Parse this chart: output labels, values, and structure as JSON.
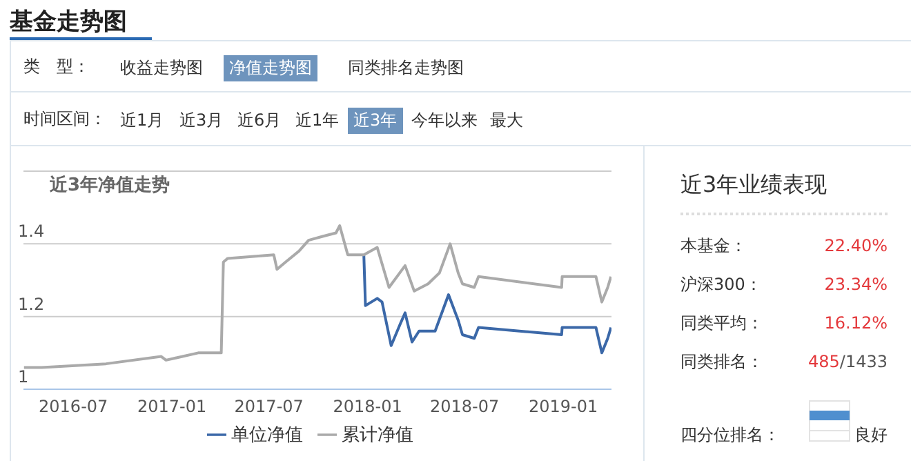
{
  "chart_data": [
    {
      "type": "line",
      "title": "近3年净值走势",
      "annotations": [
        "基金走势图",
        "类　型：",
        "收益走势图",
        "净值走势图",
        "同类排名走势图",
        "时间区间：",
        "近1月",
        "近3月",
        "近6月",
        "近1年",
        "近3年",
        "今年以来",
        "最大"
      ],
      "series": [
        {
          "name": "单位净值",
          "color": "#3b68a8",
          "x": [
            "2017-12-25",
            "2017-12-28",
            "2018-01-19",
            "2018-01-28",
            "2018-02-14",
            "2018-03-03",
            "2018-03-12",
            "2018-03-25",
            "2018-04-07",
            "2018-05-07",
            "2018-06-01",
            "2018-06-19",
            "2018-06-27",
            "2018-07-19",
            "2018-07-27",
            "2018-12-29",
            "2018-12-30",
            "2019-03-03",
            "2019-03-14",
            "2019-03-25",
            "2019-03-31"
          ],
          "values": [
            1.37,
            1.23,
            1.25,
            1.24,
            1.12,
            1.18,
            1.21,
            1.13,
            1.16,
            1.16,
            1.26,
            1.19,
            1.15,
            1.14,
            1.17,
            1.15,
            1.17,
            1.17,
            1.1,
            1.14,
            1.17
          ]
        },
        {
          "name": "累计净值",
          "color": "#aaaaaa",
          "x": [
            "2016-03-31",
            "2016-05-03",
            "2016-08-31",
            "2016-12-12",
            "2016-12-21",
            "2017-02-19",
            "2017-04-03",
            "2017-04-07",
            "2017-04-15",
            "2017-07-10",
            "2017-07-16",
            "2017-08-01",
            "2017-08-26",
            "2017-09-13",
            "2017-10-08",
            "2017-11-03",
            "2017-11-10",
            "2017-11-25",
            "2017-12-25",
            "2018-01-19",
            "2018-02-10",
            "2018-03-12",
            "2018-03-29",
            "2018-04-24",
            "2018-05-15",
            "2018-06-04",
            "2018-06-19",
            "2018-06-27",
            "2018-07-19",
            "2018-07-27",
            "2018-12-29",
            "2018-12-30",
            "2019-03-03",
            "2019-03-14",
            "2019-03-25",
            "2019-03-31"
          ],
          "values": [
            1.06,
            1.06,
            1.07,
            1.09,
            1.08,
            1.1,
            1.1,
            1.35,
            1.36,
            1.37,
            1.33,
            1.35,
            1.38,
            1.41,
            1.42,
            1.43,
            1.45,
            1.37,
            1.37,
            1.39,
            1.28,
            1.34,
            1.27,
            1.29,
            1.32,
            1.4,
            1.32,
            1.29,
            1.28,
            1.31,
            1.28,
            1.31,
            1.31,
            1.24,
            1.28,
            1.31
          ]
        }
      ],
      "xlim": [
        "2016-03-30",
        "2019-04-01"
      ],
      "xticks": [
        "2016-07",
        "2017-01",
        "2017-07",
        "2018-01",
        "2018-07",
        "2019-01"
      ],
      "ylim": [
        1,
        1.6
      ],
      "yticks": [
        1,
        1.2,
        1.4,
        {
          "value": 1.6,
          "label": null
        }
      ],
      "grid": "y",
      "legend": "bottom",
      "marker": "none"
    },
    {
      "type": "other",
      "title": "近3年业绩表现",
      "annotations": [
        "本基金：",
        "22.40%",
        "沪深300：",
        "23.34%",
        "同类平均：",
        "16.12%",
        "同类排名：",
        "485/1433",
        "四分位排名：",
        "良好"
      ]
    }
  ]
}
